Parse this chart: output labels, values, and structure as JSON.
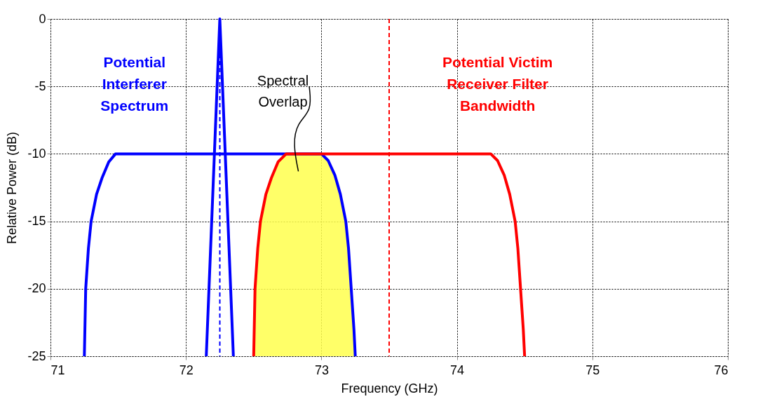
{
  "chart_data": {
    "type": "line",
    "xlabel": "Frequency (GHz)",
    "ylabel": "Relative Power (dB)",
    "xlim": [
      71,
      76
    ],
    "xticks": [
      71,
      72,
      73,
      74,
      75,
      76
    ],
    "ylim": [
      -25,
      0
    ],
    "yticks": [
      -25,
      -20,
      -15,
      -10,
      -5,
      0
    ],
    "grid": true,
    "legend": false,
    "line_style": "solid",
    "marker": "none",
    "series": [
      {
        "name": "Potential Interferer Spectrum",
        "color": "#0000ff",
        "x": [
          71.25,
          71.26,
          71.28,
          71.3,
          71.34,
          71.38,
          71.43,
          71.48,
          73.0,
          73.05,
          73.1,
          73.14,
          73.18,
          73.2,
          73.22,
          73.24,
          73.25
        ],
        "values": [
          -25,
          -20,
          -17,
          -15,
          -13,
          -11.8,
          -10.6,
          -10,
          -10,
          -10.5,
          -11.6,
          -13,
          -15,
          -17,
          -20,
          -23,
          -25
        ]
      },
      {
        "color": "#0000ff",
        "x": [
          72.15,
          72.25,
          72.35
        ],
        "values": [
          -25,
          0,
          -25
        ]
      },
      {
        "name": "Potential Victim Receiver Filter Bandwidth",
        "color": "#ff0000",
        "x": [
          72.5,
          72.51,
          72.53,
          72.55,
          72.59,
          72.63,
          72.68,
          72.74,
          74.25,
          74.3,
          74.35,
          74.39,
          74.43,
          74.45,
          74.47,
          74.49,
          74.5
        ],
        "values": [
          -25,
          -20,
          -17,
          -15,
          -13,
          -11.8,
          -10.6,
          -10,
          -10,
          -10.5,
          -11.6,
          -13,
          -15,
          -17,
          -20,
          -23,
          -25
        ]
      },
      {
        "type": "area",
        "color": "#ffff4d",
        "x": [
          72.5,
          72.51,
          72.53,
          72.55,
          72.59,
          72.63,
          72.68,
          72.74,
          73.0,
          73.05,
          73.1,
          73.14,
          73.18,
          73.2,
          73.22,
          73.24,
          73.25
        ],
        "values": [
          -25,
          -20,
          -17,
          -15,
          -13,
          -11.8,
          -10.6,
          -10,
          -10,
          -10.5,
          -11.6,
          -13,
          -15,
          -17,
          -20,
          -23,
          -25
        ]
      }
    ],
    "ref_lines": [
      {
        "axis": "x",
        "value": 72.25,
        "color": "#0000ff",
        "line_style": "dashed"
      },
      {
        "axis": "x",
        "value": 73.5,
        "color": "#ff0000",
        "line_style": "dashed"
      }
    ],
    "annotations": [
      "Spectral Overlap"
    ]
  }
}
